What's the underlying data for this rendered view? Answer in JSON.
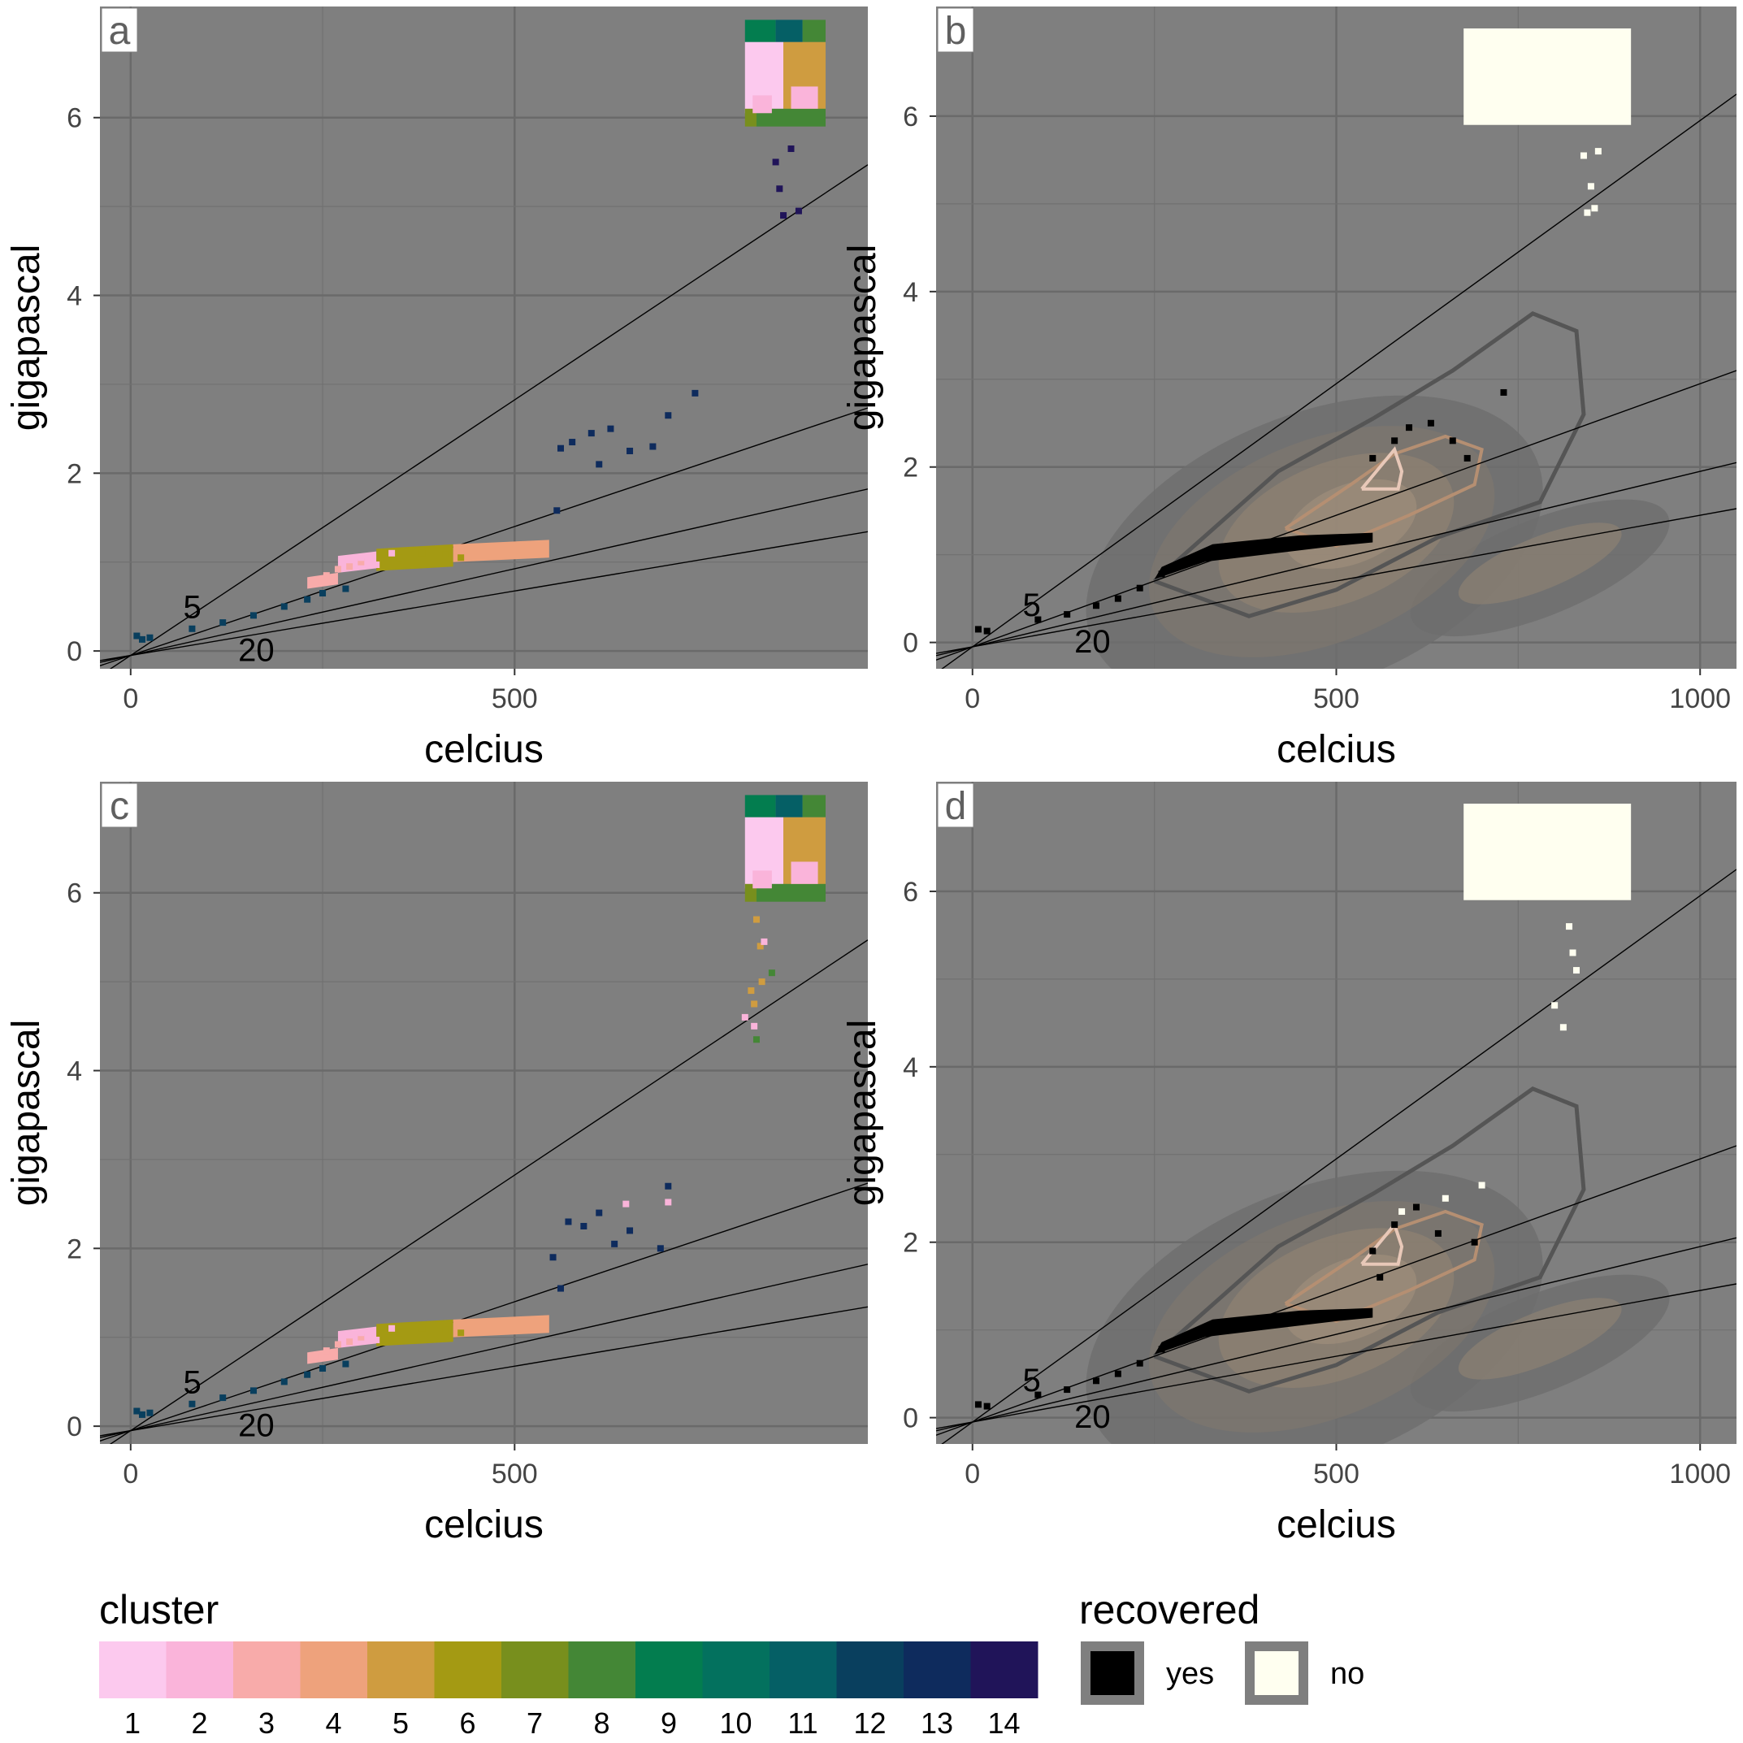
{
  "panels": [
    {
      "label": "a",
      "xlabel": "celcius",
      "ylabel": "gigapascal",
      "xticks": [
        0,
        500
      ],
      "yticks": [
        0,
        2,
        4,
        6
      ],
      "xlim": [
        -40,
        960
      ],
      "ylim": [
        -0.2,
        7.25
      ],
      "mode": "cluster",
      "ann_low": "5",
      "ann_high": "20"
    },
    {
      "label": "b",
      "xlabel": "celcius",
      "ylabel": "gigapascal",
      "xticks": [
        0,
        500,
        1000
      ],
      "yticks": [
        0,
        2,
        4,
        6
      ],
      "xlim": [
        -50,
        1050
      ],
      "ylim": [
        -0.3,
        7.25
      ],
      "mode": "recovered",
      "ann_low": "5",
      "ann_high": "20"
    },
    {
      "label": "c",
      "xlabel": "celcius",
      "ylabel": "gigapascal",
      "xticks": [
        0,
        500
      ],
      "yticks": [
        0,
        2,
        4,
        6
      ],
      "xlim": [
        -40,
        960
      ],
      "ylim": [
        -0.2,
        7.25
      ],
      "mode": "cluster",
      "ann_low": "5",
      "ann_high": "20"
    },
    {
      "label": "d",
      "xlabel": "celcius",
      "ylabel": "gigapascal",
      "xticks": [
        0,
        500,
        1000
      ],
      "yticks": [
        0,
        2,
        4,
        6
      ],
      "xlim": [
        -50,
        1050
      ],
      "ylim": [
        -0.3,
        7.25
      ],
      "mode": "recovered",
      "ann_low": "5",
      "ann_high": "20"
    }
  ],
  "legend_cluster": {
    "title": "cluster",
    "labels": [
      "1",
      "2",
      "3",
      "4",
      "5",
      "6",
      "7",
      "8",
      "9",
      "10",
      "11",
      "12",
      "13",
      "14"
    ],
    "colors": [
      "#FCC9EE",
      "#FAB4DA",
      "#F8ABAA",
      "#EEA27C",
      "#CF9C40",
      "#A49A13",
      "#788F1D",
      "#448736",
      "#037D4F",
      "#03715E",
      "#055F65",
      "#093F5E",
      "#0E2B5D",
      "#201459"
    ]
  },
  "legend_recovered": {
    "title": "recovered",
    "items": [
      {
        "label": "yes",
        "color": "#000000"
      },
      {
        "label": "no",
        "color": "#FFFFF0"
      }
    ]
  },
  "chart_data": [
    {
      "type": "scatter",
      "panel": "a",
      "xlabel": "celcius",
      "ylabel": "gigapascal",
      "xlim": [
        -40,
        960
      ],
      "ylim": [
        -0.2,
        7.25
      ],
      "reference_lines": [
        {
          "slope": 0.00575,
          "intercept": -0.05,
          "label": "5"
        },
        {
          "slope": 0.0029,
          "intercept": -0.05
        },
        {
          "slope": 0.00195,
          "intercept": -0.05
        },
        {
          "slope": 0.00145,
          "intercept": -0.05,
          "label": "20"
        }
      ],
      "series": [
        {
          "cluster": 12,
          "points": [
            [
              8,
              0.17
            ],
            [
              15,
              0.13
            ],
            [
              25,
              0.15
            ],
            [
              80,
              0.25
            ],
            [
              120,
              0.32
            ],
            [
              160,
              0.4
            ],
            [
              200,
              0.5
            ],
            [
              230,
              0.58
            ],
            [
              250,
              0.65
            ],
            [
              280,
              0.7
            ]
          ]
        },
        {
          "cluster": 3,
          "points": [
            [
              240,
              0.78
            ],
            [
              255,
              0.85
            ],
            [
              270,
              0.92
            ],
            [
              285,
              0.95
            ],
            [
              300,
              1.0
            ]
          ]
        },
        {
          "cluster": 2,
          "points": [
            [
              300,
              1.05
            ],
            [
              320,
              0.97
            ],
            [
              340,
              1.1
            ]
          ]
        },
        {
          "cluster": 6,
          "points": [
            [
              350,
              1.05
            ],
            [
              380,
              1.1
            ],
            [
              410,
              1.08
            ],
            [
              430,
              1.05
            ]
          ]
        },
        {
          "cluster": 4,
          "points": [
            [
              450,
              1.1
            ],
            [
              490,
              1.15
            ],
            [
              530,
              1.18
            ]
          ]
        },
        {
          "cluster": 13,
          "points": [
            [
              555,
              1.58
            ],
            [
              560,
              2.28
            ],
            [
              575,
              2.35
            ],
            [
              600,
              2.45
            ],
            [
              610,
              2.1
            ],
            [
              625,
              2.5
            ],
            [
              650,
              2.25
            ],
            [
              680,
              2.3
            ],
            [
              700,
              2.65
            ],
            [
              735,
              2.9
            ]
          ]
        },
        {
          "cluster": 14,
          "points": [
            [
              840,
              5.5
            ],
            [
              845,
              5.2
            ],
            [
              850,
              4.9
            ],
            [
              860,
              5.65
            ],
            [
              870,
              4.95
            ]
          ]
        }
      ]
    },
    {
      "type": "scatter",
      "panel": "b",
      "xlabel": "celcius",
      "ylabel": "gigapascal",
      "xlim": [
        -50,
        1050
      ],
      "ylim": [
        -0.3,
        7.25
      ],
      "reference_lines": [
        {
          "slope": 0.006,
          "intercept": -0.05,
          "label": "5"
        },
        {
          "slope": 0.003,
          "intercept": -0.05
        },
        {
          "slope": 0.002,
          "intercept": -0.05
        },
        {
          "slope": 0.0015,
          "intercept": -0.05,
          "label": "20"
        }
      ],
      "series": [
        {
          "name": "yes",
          "points": [
            [
              8,
              0.15
            ],
            [
              20,
              0.13
            ],
            [
              90,
              0.26
            ],
            [
              130,
              0.32
            ],
            [
              170,
              0.42
            ],
            [
              200,
              0.5
            ],
            [
              230,
              0.62
            ],
            [
              260,
              0.78
            ],
            [
              300,
              0.92
            ],
            [
              350,
              1.02
            ],
            [
              400,
              1.08
            ],
            [
              450,
              1.12
            ],
            [
              500,
              1.15
            ],
            [
              540,
              1.18
            ],
            [
              550,
              2.1
            ],
            [
              580,
              2.3
            ],
            [
              600,
              2.45
            ],
            [
              630,
              2.5
            ],
            [
              660,
              2.3
            ],
            [
              680,
              2.1
            ],
            [
              730,
              2.85
            ]
          ]
        },
        {
          "name": "no",
          "points": [
            [
              840,
              5.55
            ],
            [
              850,
              5.2
            ],
            [
              855,
              4.95
            ],
            [
              860,
              5.6
            ],
            [
              845,
              4.9
            ]
          ]
        }
      ]
    },
    {
      "type": "scatter",
      "panel": "c",
      "xlabel": "celcius",
      "ylabel": "gigapascal",
      "xlim": [
        -40,
        960
      ],
      "ylim": [
        -0.2,
        7.25
      ],
      "reference_lines": [
        {
          "slope": 0.00575,
          "intercept": -0.05,
          "label": "5"
        },
        {
          "slope": 0.0029,
          "intercept": -0.05
        },
        {
          "slope": 0.00195,
          "intercept": -0.05
        },
        {
          "slope": 0.00145,
          "intercept": -0.05,
          "label": "20"
        }
      ],
      "series": [
        {
          "cluster": 12,
          "points": [
            [
              8,
              0.17
            ],
            [
              15,
              0.13
            ],
            [
              25,
              0.15
            ],
            [
              80,
              0.25
            ],
            [
              120,
              0.32
            ],
            [
              160,
              0.4
            ],
            [
              200,
              0.5
            ],
            [
              230,
              0.58
            ],
            [
              250,
              0.65
            ],
            [
              280,
              0.7
            ]
          ]
        },
        {
          "cluster": 3,
          "points": [
            [
              240,
              0.78
            ],
            [
              255,
              0.85
            ],
            [
              270,
              0.92
            ],
            [
              285,
              0.95
            ],
            [
              300,
              1.0
            ]
          ]
        },
        {
          "cluster": 2,
          "points": [
            [
              300,
              1.05
            ],
            [
              320,
              0.97
            ],
            [
              340,
              1.1
            ],
            [
              645,
              2.5
            ],
            [
              700,
              2.52
            ]
          ]
        },
        {
          "cluster": 6,
          "points": [
            [
              350,
              1.05
            ],
            [
              380,
              1.1
            ],
            [
              410,
              1.08
            ],
            [
              430,
              1.05
            ]
          ]
        },
        {
          "cluster": 4,
          "points": [
            [
              450,
              1.1
            ],
            [
              490,
              1.15
            ],
            [
              530,
              1.18
            ]
          ]
        },
        {
          "cluster": 13,
          "points": [
            [
              550,
              1.9
            ],
            [
              560,
              1.55
            ],
            [
              570,
              2.3
            ],
            [
              590,
              2.25
            ],
            [
              610,
              2.4
            ],
            [
              630,
              2.05
            ],
            [
              650,
              2.2
            ],
            [
              690,
              2.0
            ],
            [
              700,
              2.7
            ]
          ]
        },
        {
          "cluster": 5,
          "points": [
            [
              815,
              5.7
            ],
            [
              820,
              5.4
            ],
            [
              808,
              4.9
            ],
            [
              812,
              4.75
            ],
            [
              822,
              5.0
            ]
          ]
        },
        {
          "cluster": 2,
          "points": [
            [
              825,
              5.45
            ],
            [
              800,
              4.6
            ],
            [
              812,
              4.5
            ]
          ]
        },
        {
          "cluster": 8,
          "points": [
            [
              835,
              5.1
            ],
            [
              815,
              4.35
            ]
          ]
        }
      ]
    },
    {
      "type": "scatter",
      "panel": "d",
      "xlabel": "celcius",
      "ylabel": "gigapascal",
      "xlim": [
        -50,
        1050
      ],
      "ylim": [
        -0.3,
        7.25
      ],
      "reference_lines": [
        {
          "slope": 0.006,
          "intercept": -0.05,
          "label": "5"
        },
        {
          "slope": 0.003,
          "intercept": -0.05
        },
        {
          "slope": 0.002,
          "intercept": -0.05
        },
        {
          "slope": 0.0015,
          "intercept": -0.05,
          "label": "20"
        }
      ],
      "series": [
        {
          "name": "yes",
          "points": [
            [
              8,
              0.15
            ],
            [
              20,
              0.13
            ],
            [
              90,
              0.26
            ],
            [
              130,
              0.32
            ],
            [
              170,
              0.42
            ],
            [
              200,
              0.5
            ],
            [
              230,
              0.62
            ],
            [
              260,
              0.78
            ],
            [
              300,
              0.92
            ],
            [
              350,
              1.02
            ],
            [
              400,
              1.08
            ],
            [
              450,
              1.12
            ],
            [
              500,
              1.15
            ],
            [
              540,
              1.18
            ],
            [
              550,
              1.9
            ],
            [
              560,
              1.6
            ],
            [
              580,
              2.2
            ],
            [
              610,
              2.4
            ],
            [
              640,
              2.1
            ],
            [
              690,
              2.0
            ]
          ]
        },
        {
          "name": "no",
          "points": [
            [
              820,
              5.6
            ],
            [
              825,
              5.3
            ],
            [
              800,
              4.7
            ],
            [
              812,
              4.45
            ],
            [
              830,
              5.1
            ],
            [
              650,
              2.5
            ],
            [
              700,
              2.65
            ],
            [
              590,
              2.35
            ]
          ]
        }
      ]
    }
  ]
}
